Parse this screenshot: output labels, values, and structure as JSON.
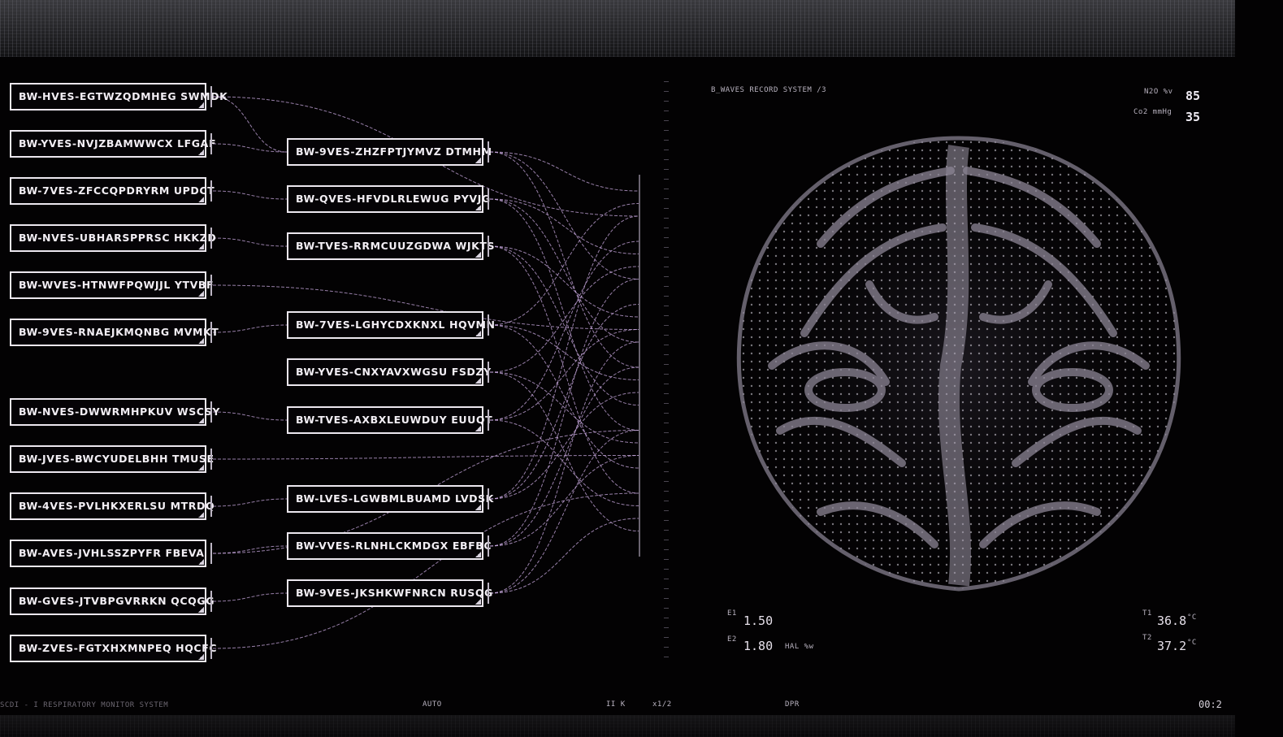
{
  "left_tags": [
    "BW-HVES-EGTWZQDMHEG SWMDK",
    "BW-YVES-NVJZBAMWWCX LFGAF",
    "BW-7VES-ZFCCQPDRYRM UPDCT",
    "BW-NVES-UBHARSPPRSC HKKZD",
    "BW-WVES-HTNWFPQWJJL YTVBF",
    "BW-9VES-RNAEJKMQNBG MVMKT",
    "BW-NVES-DWWRMHPKUV WSCSY",
    "BW-JVES-BWCYUDELBHH TMUSE",
    "BW-4VES-PVLHKXERLSU MTRDQ",
    "BW-AVES-JVHLSSZPYFR FBEVA",
    "BW-GVES-JTVBPGVRRKN QCQGG",
    "BW-ZVES-FGTXHXMNPEQ HQCFC"
  ],
  "mid_tags": [
    "BW-9VES-ZHZFPTJYMVZ DTMHM",
    "BW-QVES-HFVDLRLEWUG PYVJG",
    "BW-TVES-RRMCUUZGDWA WJKTS",
    "BW-7VES-LGHYCDXKNXL HQVMN",
    "BW-YVES-CNXYAVXWGSU FSDZY",
    "BW-TVES-AXBXLEUWDUY EUUQT",
    "BW-LVES-LGWBMLBUAMD LVDSK",
    "BW-VVES-RLNHLCKMDGX EBFBC",
    "BW-9VES-JKSHKWFNRCN RUSQG"
  ],
  "record": {
    "title": "B_WAVES RECORD SYSTEM /3",
    "n2o_label": "N2O %v",
    "n2o_value": "85",
    "co2_label": "Co2 mmHg",
    "co2_value": "35"
  },
  "readouts": {
    "e1_label": "E1",
    "e1_value": "1.50",
    "e2_label": "E2",
    "e2_value": "1.80",
    "hal_label": "HAL %w",
    "t1_label": "T1",
    "t1_value": "36.8",
    "t2_label": "T2",
    "t2_value": "37.2",
    "temp_unit": "°C"
  },
  "footer": {
    "system": "SCDI - I   RESPIRATORY MONITOR SYSTEM",
    "mode": "AUTO",
    "controls": "II  K",
    "speed": "x1/2",
    "dpr": "DPR",
    "time": "00:2"
  },
  "colors": {
    "wire": "#c9a9e0",
    "tag_border": "#ece7ef",
    "background": "#030203"
  }
}
